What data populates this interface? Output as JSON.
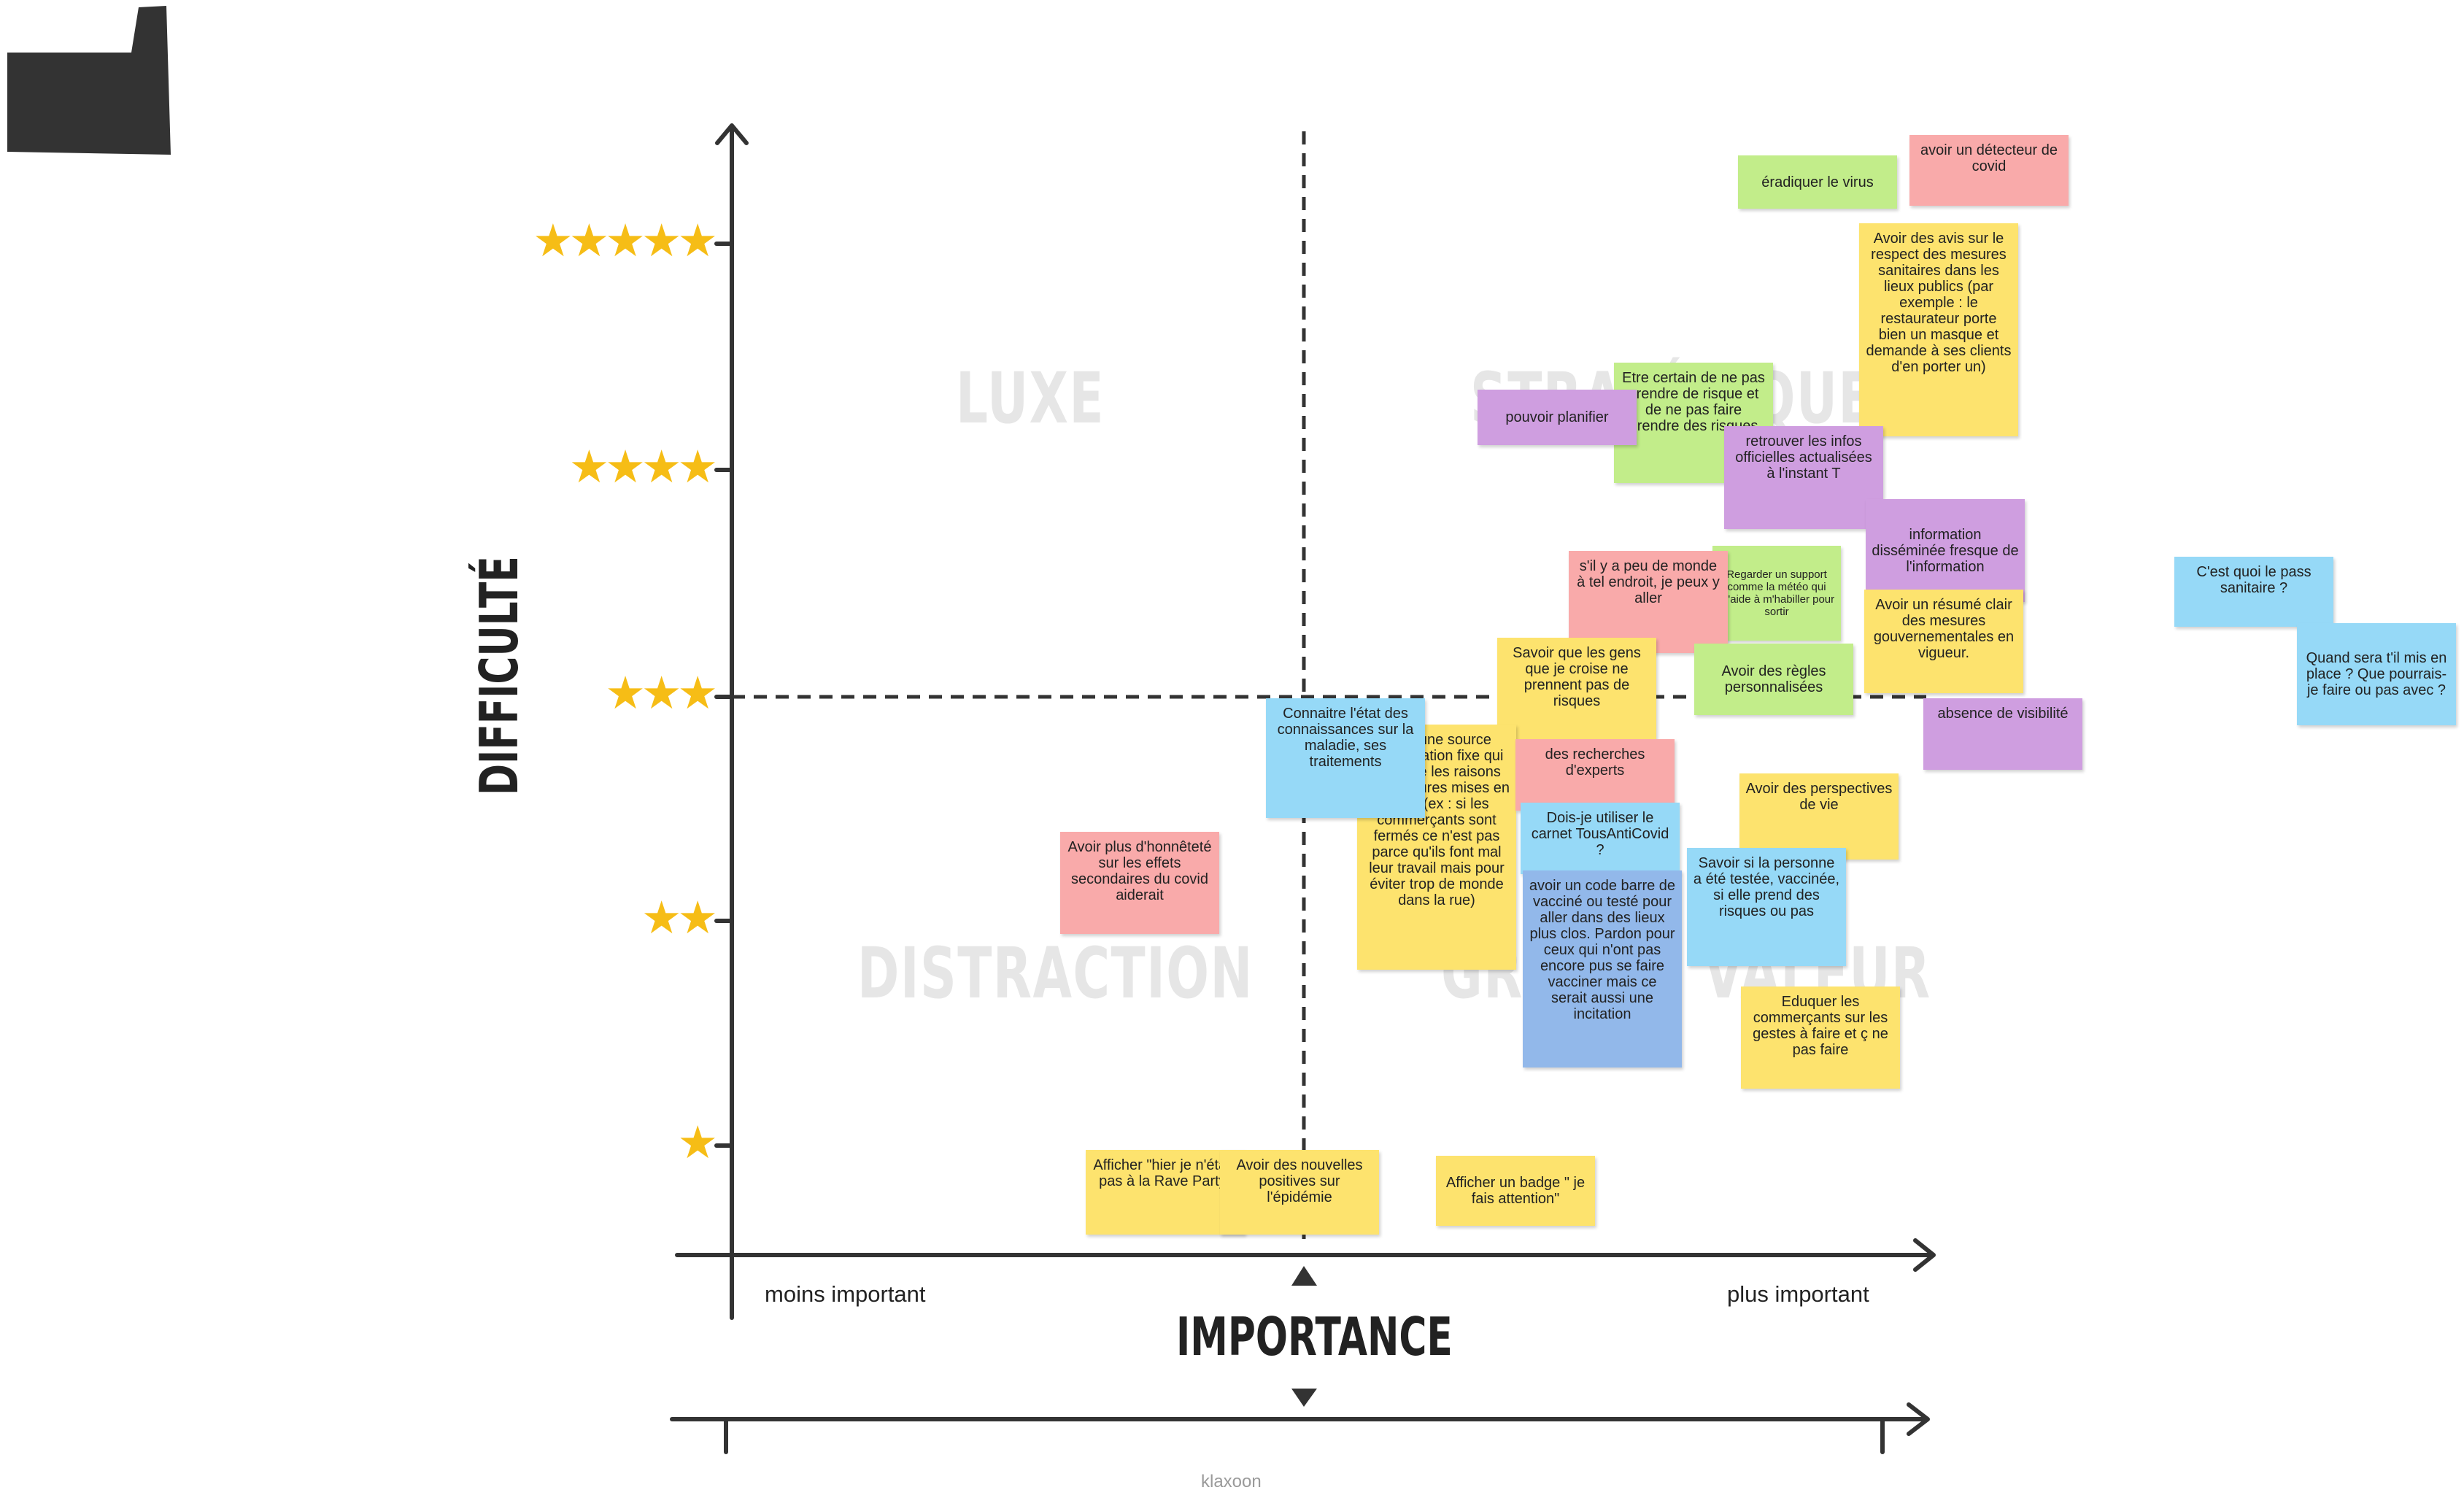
{
  "board": {
    "quadrants": {
      "top_left": "LUXE",
      "top_right": "STRATÉGIQUE",
      "bottom_left": "DISTRACTION",
      "bottom_right": "GRANDE VALEUR"
    },
    "y_axis_title": "DIFFICULTÉ",
    "x_axis_title": "IMPORTANCE",
    "x_min_label": "moins important",
    "x_max_label": "plus important",
    "star_levels": [
      "★★★★★",
      "★★★★",
      "★★★",
      "★★",
      "★"
    ],
    "footer": "klaxoon",
    "colors": {
      "yellow": "#fde36e",
      "green": "#c2ed8a",
      "pink": "#f9aaaa",
      "purple": "#cf9ee0",
      "blue": "#96d9f7",
      "blue_dark": "#92b8ea",
      "star": "#f6bd16"
    },
    "notes": [
      {
        "text": "éradiquer le virus",
        "color": "green"
      },
      {
        "text": "avoir un détecteur de covid",
        "color": "pink"
      },
      {
        "text": "Avoir des avis sur le respect des mesures sanitaires dans les lieux publics (par exemple : le restaurateur porte bien un masque et demande à ses clients d'en porter un)",
        "color": "yellow"
      },
      {
        "text": "Etre certain de ne pas prendre de risque et de ne pas faire prendre des risques",
        "color": "green"
      },
      {
        "text": "pouvoir planifier",
        "color": "purple"
      },
      {
        "text": "retrouver les infos officielles actualisées à l'instant T",
        "color": "purple"
      },
      {
        "text": "information disséminée fresque de l'information",
        "color": "purple"
      },
      {
        "text": "C'est quoi le pass sanitaire ?",
        "color": "blue"
      },
      {
        "text": "Quand sera t'il mis en place ? Que pourrais-je faire ou pas avec ?",
        "color": "blue"
      },
      {
        "text": "s'il y a peu de monde à tel endroit, je peux y aller",
        "color": "pink"
      },
      {
        "text": "Regarder un support comme la météo qui m'aide à m'habiller pour sortir",
        "color": "green"
      },
      {
        "text": "Avoir un résumé clair des mesures gouvernementales en vigueur.",
        "color": "yellow"
      },
      {
        "text": "Savoir que les gens que je croise ne prennent pas de risques",
        "color": "yellow"
      },
      {
        "text": "Avoir des règles personnalisées",
        "color": "green"
      },
      {
        "text": "absence de visibilité",
        "color": "purple"
      },
      {
        "text": "Avoir une source d'information fixe qui explique les raisons des mesures mises en place (ex : si les commerçants sont fermés ce n'est pas parce qu'ils font mal leur travail mais pour éviter trop de monde dans la rue)",
        "color": "yellow"
      },
      {
        "text": "Connaitre l'état des connaissances sur la maladie, ses traitements",
        "color": "blue"
      },
      {
        "text": "des recherches d'experts",
        "color": "pink"
      },
      {
        "text": "Avoir des perspectives de vie",
        "color": "yellow"
      },
      {
        "text": "Dois-je utiliser le carnet TousAntiCovid ?",
        "color": "blue"
      },
      {
        "text": "Savoir si la personne a été testée, vaccinée, si elle prend des risques ou pas",
        "color": "blue"
      },
      {
        "text": "avoir un code barre de vacciné ou testé pour aller dans des lieux plus clos. Pardon pour ceux qui n'ont pas encore pus se faire vacciner mais ce serait aussi une incitation",
        "color": "blue_dark"
      },
      {
        "text": "Eduquer les commerçants sur les gestes à faire et ç ne pas faire",
        "color": "yellow"
      },
      {
        "text": "Avoir plus d'honnêteté sur les effets secondaires du covid aiderait",
        "color": "pink"
      },
      {
        "text": "Afficher \"hier je n'étais pas à la Rave Party\"",
        "color": "yellow"
      },
      {
        "text": "Avoir des nouvelles positives sur l'épidémie",
        "color": "yellow"
      },
      {
        "text": "Afficher un badge \" je fais attention\"",
        "color": "yellow"
      }
    ]
  }
}
